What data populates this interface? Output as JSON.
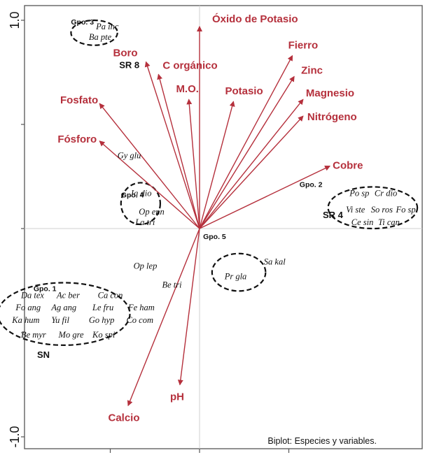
{
  "chart_data": {
    "type": "scatter",
    "title": "",
    "caption": "Biplot: Especies y variables.",
    "xlim": [
      -1.0,
      1.0
    ],
    "ylim": [
      -1.0,
      1.0
    ],
    "y_ticks": [
      {
        "value": 1.0,
        "label": "1.0"
      },
      {
        "value": -1.0,
        "label": "-1.0"
      }
    ],
    "grid": false,
    "reference_lines": [
      0,
      0
    ],
    "arrow_color": "#b5303c",
    "species_color": "#111111",
    "variables": [
      {
        "name": "Óxido de Potasio",
        "x": 0.0,
        "y": 0.97
      },
      {
        "name": "Fierro",
        "x": 0.52,
        "y": 0.83
      },
      {
        "name": "Zinc",
        "x": 0.53,
        "y": 0.73
      },
      {
        "name": "Boro",
        "x": -0.3,
        "y": 0.8
      },
      {
        "name": "C orgánico",
        "x": -0.23,
        "y": 0.74
      },
      {
        "name": "M.O.",
        "x": -0.06,
        "y": 0.62
      },
      {
        "name": "Potasio",
        "x": 0.19,
        "y": 0.61
      },
      {
        "name": "Magnesio",
        "x": 0.58,
        "y": 0.62
      },
      {
        "name": "Nitrógeno",
        "x": 0.58,
        "y": 0.54
      },
      {
        "name": "Fosfato",
        "x": -0.56,
        "y": 0.6
      },
      {
        "name": "Fósforo",
        "x": -0.56,
        "y": 0.42
      },
      {
        "name": "Cobre",
        "x": 0.73,
        "y": 0.3
      },
      {
        "name": "Calcio",
        "x": -0.4,
        "y": -0.85
      },
      {
        "name": "pH",
        "x": -0.11,
        "y": -0.75
      }
    ],
    "species": [
      {
        "name": "Pa inc",
        "x": -0.58,
        "y": 0.97
      },
      {
        "name": "Ba pte",
        "x": -0.62,
        "y": 0.92
      },
      {
        "name": "Gy glu",
        "x": -0.46,
        "y": 0.35
      },
      {
        "name": "Ja dio",
        "x": -0.39,
        "y": 0.17
      },
      {
        "name": "Op enn",
        "x": -0.34,
        "y": 0.08
      },
      {
        "name": "La tri",
        "x": -0.36,
        "y": 0.03
      },
      {
        "name": "Po sp",
        "x": 0.84,
        "y": 0.17
      },
      {
        "name": "Cr dio",
        "x": 0.98,
        "y": 0.17
      },
      {
        "name": "Vi ste",
        "x": 0.82,
        "y": 0.09
      },
      {
        "name": "So ros",
        "x": 0.96,
        "y": 0.09
      },
      {
        "name": "Fo spl",
        "x": 1.1,
        "y": 0.09
      },
      {
        "name": "Ce sin",
        "x": 0.85,
        "y": 0.03
      },
      {
        "name": "Ti can",
        "x": 1.0,
        "y": 0.03
      },
      {
        "name": "Sa kal",
        "x": 0.36,
        "y": -0.16
      },
      {
        "name": "Pr gla",
        "x": 0.14,
        "y": -0.23
      },
      {
        "name": "Op lep",
        "x": -0.37,
        "y": -0.18
      },
      {
        "name": "Be tri",
        "x": -0.21,
        "y": -0.27
      },
      {
        "name": "Da tex",
        "x": -1.0,
        "y": -0.32
      },
      {
        "name": "Ac ber",
        "x": -0.8,
        "y": -0.32
      },
      {
        "name": "Ca con",
        "x": -0.57,
        "y": -0.32
      },
      {
        "name": "Fo ang",
        "x": -1.03,
        "y": -0.38
      },
      {
        "name": "Ag ang",
        "x": -0.83,
        "y": -0.38
      },
      {
        "name": "Le fru",
        "x": -0.6,
        "y": -0.38
      },
      {
        "name": "Fe ham",
        "x": -0.4,
        "y": -0.38
      },
      {
        "name": "Ka hum",
        "x": -1.05,
        "y": -0.44
      },
      {
        "name": "Yu fil",
        "x": -0.83,
        "y": -0.44
      },
      {
        "name": "Go hyp",
        "x": -0.62,
        "y": -0.44
      },
      {
        "name": "Co com",
        "x": -0.41,
        "y": -0.44
      },
      {
        "name": "Be myr",
        "x": -1.0,
        "y": -0.51
      },
      {
        "name": "Mo gre",
        "x": -0.79,
        "y": -0.51
      },
      {
        "name": "Ko spi",
        "x": -0.6,
        "y": -0.51
      }
    ],
    "groups": [
      {
        "label": "Gpo. 3",
        "cx": -0.59,
        "cy": 0.94,
        "rx": 0.13,
        "ry": 0.06
      },
      {
        "label": "Gpo. 4",
        "cx": -0.33,
        "cy": 0.12,
        "rx": 0.11,
        "ry": 0.1
      },
      {
        "label": "Gpo. 2",
        "cx": 0.97,
        "cy": 0.1,
        "rx": 0.25,
        "ry": 0.1
      },
      {
        "label": "Gpo. 5",
        "cx": 0.22,
        "cy": -0.21,
        "rx": 0.15,
        "ry": 0.09
      },
      {
        "label": "Gpo. 1",
        "cx": -0.76,
        "cy": -0.41,
        "rx": 0.37,
        "ry": 0.15
      }
    ],
    "annotations": [
      {
        "text": "SR 8",
        "x": -0.45,
        "y": 0.77
      },
      {
        "text": "SR 4",
        "x": 0.69,
        "y": 0.05
      },
      {
        "text": "SN",
        "x": -0.91,
        "y": -0.62
      }
    ]
  }
}
